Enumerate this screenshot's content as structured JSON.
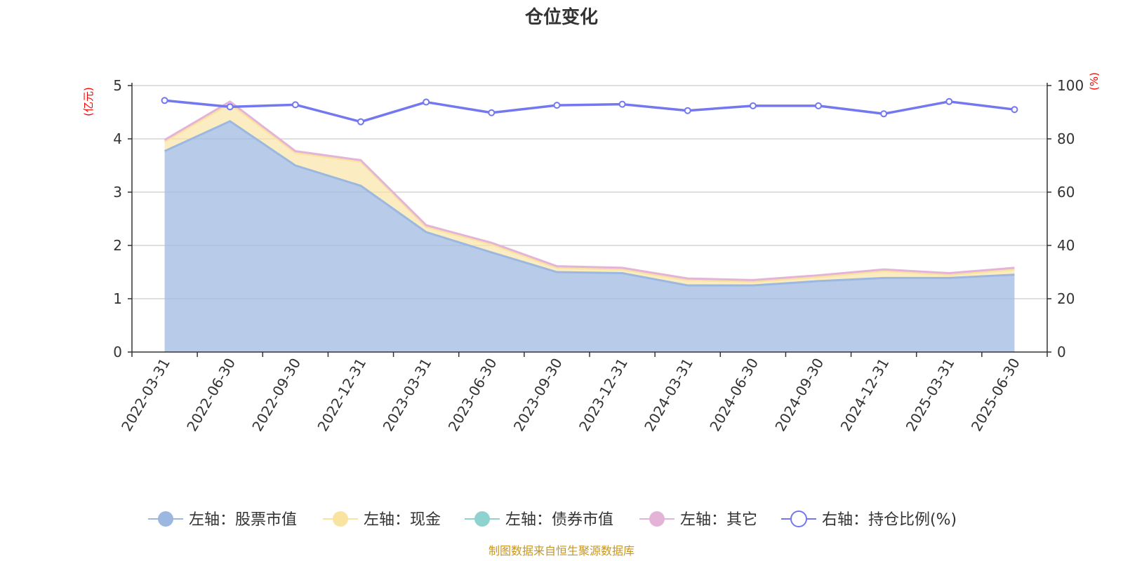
{
  "chart_data": {
    "type": "area",
    "title": "仓位变化",
    "left_axis_unit": "(亿元)",
    "right_axis_unit": "(%)",
    "x": [
      "2022-03-31",
      "2022-06-30",
      "2022-09-30",
      "2022-12-31",
      "2023-03-31",
      "2023-06-30",
      "2023-09-30",
      "2023-12-31",
      "2024-03-31",
      "2024-06-30",
      "2024-09-30",
      "2024-12-31",
      "2025-03-31",
      "2025-06-30"
    ],
    "ylim_left": [
      0,
      5
    ],
    "yticks_left": [
      0,
      1,
      2,
      3,
      4,
      5
    ],
    "ylim_right": [
      0,
      100
    ],
    "yticks_right": [
      0,
      20,
      40,
      60,
      80,
      100
    ],
    "stacked": true,
    "grid": true,
    "legend_position": "bottom",
    "series": [
      {
        "name": "左轴：股票市值",
        "axis": "left",
        "color": "#9cb8e0",
        "values": [
          3.77,
          4.33,
          3.5,
          3.12,
          2.25,
          1.87,
          1.5,
          1.48,
          1.25,
          1.25,
          1.33,
          1.39,
          1.39,
          1.45
        ]
      },
      {
        "name": "左轴：现金",
        "axis": "left",
        "color": "#f9e3a0",
        "values": [
          0.18,
          0.33,
          0.24,
          0.45,
          0.1,
          0.15,
          0.08,
          0.07,
          0.1,
          0.07,
          0.08,
          0.13,
          0.06,
          0.1
        ]
      },
      {
        "name": "左轴：债券市值",
        "axis": "left",
        "color": "#8fd3d0",
        "values": [
          0,
          0,
          0,
          0,
          0,
          0,
          0,
          0,
          0,
          0,
          0,
          0,
          0,
          0
        ]
      },
      {
        "name": "左轴：其它",
        "axis": "left",
        "color": "#e4b3d8",
        "values": [
          0.03,
          0.04,
          0.03,
          0.03,
          0.03,
          0.03,
          0.03,
          0.03,
          0.03,
          0.03,
          0.03,
          0.03,
          0.03,
          0.03
        ]
      },
      {
        "name": "右轴：持仓比例(%)",
        "axis": "right",
        "color": "#7378f0",
        "values": [
          94.4,
          92.0,
          92.8,
          86.4,
          93.8,
          89.8,
          92.6,
          93.0,
          90.6,
          92.4,
          92.4,
          89.4,
          94.0,
          91.0
        ]
      }
    ]
  },
  "footer": {
    "source": "制图数据来自恒生聚源数据库"
  }
}
